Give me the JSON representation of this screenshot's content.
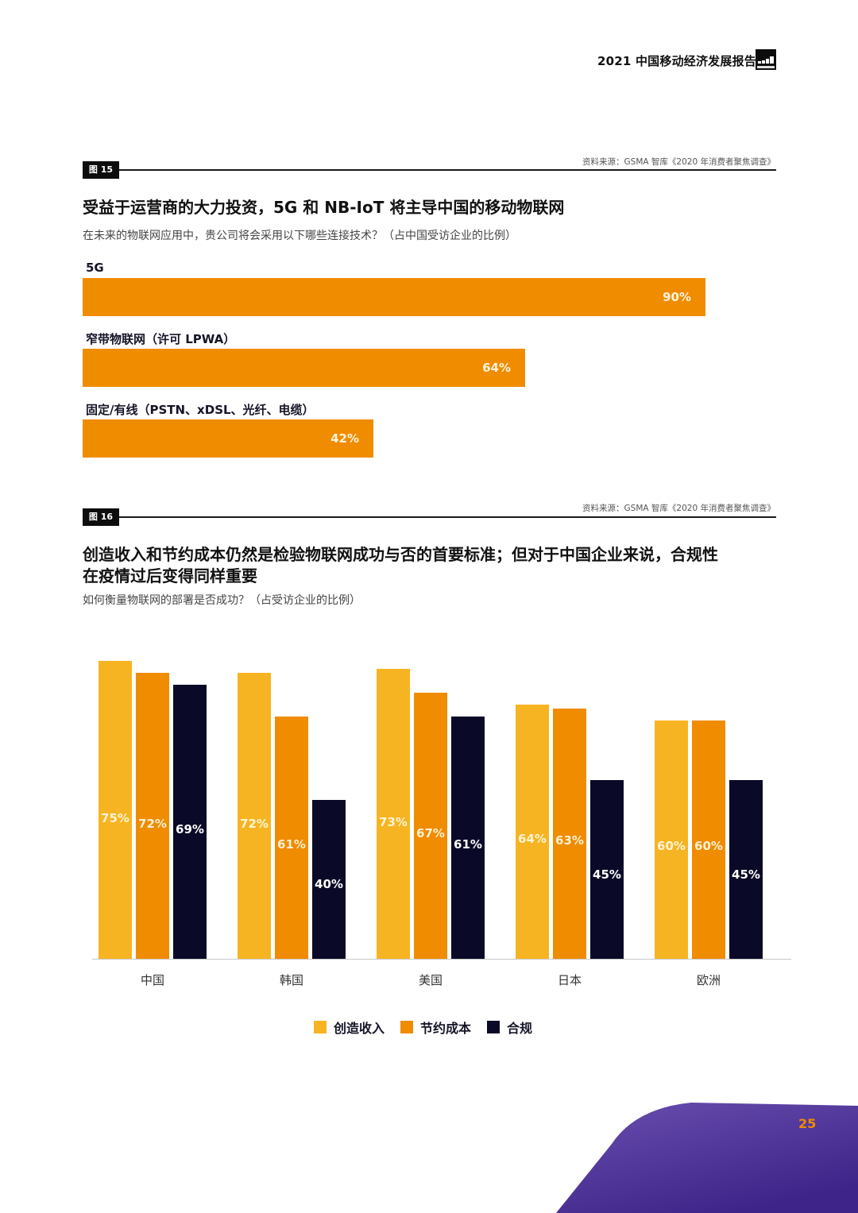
{
  "header": {
    "report_title": "2021 中国移动经济发展报告",
    "logo": "gsma-logo"
  },
  "figure15": {
    "tag": "图 15",
    "source": "资料来源：GSMA 智库《2020 年消费者聚焦调查》",
    "title": "受益于运营商的大力投资，5G 和 NB-IoT 将主导中国的移动物联网",
    "subtitle": "在未来的物联网应用中，贵公司将会采用以下哪些连接技术？（占中国受访企业的比例）",
    "bars": [
      {
        "label": "5G",
        "value": 90,
        "value_label": "90%"
      },
      {
        "label": "窄带物联网（许可 LPWA）",
        "value": 64,
        "value_label": "64%"
      },
      {
        "label": "固定/有线（PSTN、xDSL、光纤、电缆）",
        "value": 42,
        "value_label": "42%"
      }
    ]
  },
  "figure16": {
    "tag": "图 16",
    "source": "资料来源：GSMA 智库《2020 年消费者聚焦调查》",
    "title_line1": "创造收入和节约成本仍然是检验物联网成功与否的首要标准；但对于中国企业来说，合规性",
    "title_line2": "在疫情过后变得同样重要",
    "subtitle": "如何衡量物联网的部署是否成功？（占受访企业的比例）",
    "legend": [
      {
        "label": "创造收入",
        "color": "#F7B422"
      },
      {
        "label": "节约成本",
        "color": "#F08C00"
      },
      {
        "label": "合规",
        "color": "#0A0A28"
      }
    ]
  },
  "chart_data": [
    {
      "type": "bar",
      "orientation": "horizontal",
      "title": "受益于运营商的大力投资，5G 和 NB-IoT 将主导中国的移动物联网",
      "subtitle": "在未来的物联网应用中，贵公司将会采用以下哪些连接技术？（占中国受访企业的比例）",
      "categories": [
        "5G",
        "窄带物联网（许可 LPWA）",
        "固定/有线（PSTN、xDSL、光纤、电缆）"
      ],
      "values": [
        90,
        64,
        42
      ],
      "unit": "%",
      "color": "#F08C00",
      "grid": false,
      "xlim": [
        0,
        100
      ]
    },
    {
      "type": "bar",
      "orientation": "vertical",
      "title": "创造收入和节约成本仍然是检验物联网成功与否的首要标准；但对于中国企业来说，合规性在疫情过后变得同样重要",
      "subtitle": "如何衡量物联网的部署是否成功？（占受访企业的比例）",
      "categories": [
        "中国",
        "韩国",
        "美国",
        "日本",
        "欧洲"
      ],
      "series": [
        {
          "name": "创造收入",
          "color": "#F7B422",
          "values": [
            75,
            72,
            73,
            64,
            60
          ]
        },
        {
          "name": "节约成本",
          "color": "#F08C00",
          "values": [
            72,
            61,
            67,
            63,
            60
          ]
        },
        {
          "name": "合规",
          "color": "#0A0A28",
          "values": [
            69,
            40,
            61,
            45,
            45
          ]
        }
      ],
      "unit": "%",
      "legend_position": "bottom",
      "grid": false,
      "ylim": [
        0,
        80
      ]
    }
  ],
  "footer": {
    "page_number": "25",
    "accent_color": "#5B3FA0"
  }
}
